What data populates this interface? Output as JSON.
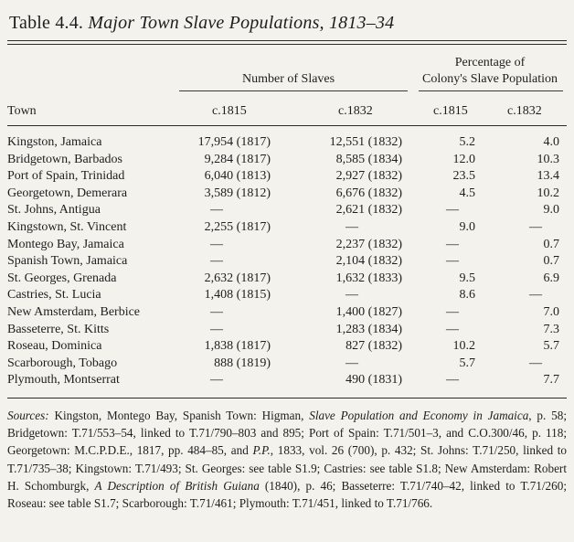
{
  "title": {
    "prefix": "Table 4.4.",
    "italic": "Major Town Slave Populations, 1813–34"
  },
  "header": {
    "number_of_slaves": "Number of Slaves",
    "percentage_line1": "Percentage of",
    "percentage_line2": "Colony's Slave Population",
    "town": "Town",
    "c1815": "c.1815",
    "c1832": "c.1832",
    "pc1815": "c.1815",
    "pc1832": "c.1832"
  },
  "rows": [
    {
      "town": "Kingston, Jamaica",
      "n1815": "17,954 (1817)",
      "n1832": "12,551 (1832)",
      "p1815": "5.2",
      "p1832": "4.0"
    },
    {
      "town": "Bridgetown, Barbados",
      "n1815": "9,284 (1817)",
      "n1832": "8,585 (1834)",
      "p1815": "12.0",
      "p1832": "10.3"
    },
    {
      "town": "Port of Spain, Trinidad",
      "n1815": "6,040 (1813)",
      "n1832": "2,927 (1832)",
      "p1815": "23.5",
      "p1832": "13.4"
    },
    {
      "town": "Georgetown, Demerara",
      "n1815": "3,589 (1812)",
      "n1832": "6,676 (1832)",
      "p1815": "4.5",
      "p1832": "10.2"
    },
    {
      "town": "St. Johns, Antigua",
      "n1815": "—",
      "n1832": "2,621 (1832)",
      "p1815": "—",
      "p1832": "9.0"
    },
    {
      "town": "Kingstown, St. Vincent",
      "n1815": "2,255 (1817)",
      "n1832": "—",
      "p1815": "9.0",
      "p1832": "—"
    },
    {
      "town": "Montego Bay, Jamaica",
      "n1815": "—",
      "n1832": "2,237 (1832)",
      "p1815": "—",
      "p1832": "0.7"
    },
    {
      "town": "Spanish Town, Jamaica",
      "n1815": "—",
      "n1832": "2,104 (1832)",
      "p1815": "—",
      "p1832": "0.7"
    },
    {
      "town": "St. Georges, Grenada",
      "n1815": "2,632 (1817)",
      "n1832": "1,632 (1833)",
      "p1815": "9.5",
      "p1832": "6.9"
    },
    {
      "town": "Castries, St. Lucia",
      "n1815": "1,408 (1815)",
      "n1832": "—",
      "p1815": "8.6",
      "p1832": "—"
    },
    {
      "town": "New Amsterdam, Berbice",
      "n1815": "—",
      "n1832": "1,400 (1827)",
      "p1815": "—",
      "p1832": "7.0"
    },
    {
      "town": "Basseterre, St. Kitts",
      "n1815": "—",
      "n1832": "1,283 (1834)",
      "p1815": "—",
      "p1832": "7.3"
    },
    {
      "town": "Roseau, Dominica",
      "n1815": "1,838 (1817)",
      "n1832": "827 (1832)",
      "p1815": "10.2",
      "p1832": "5.7"
    },
    {
      "town": "Scarborough, Tobago",
      "n1815": "888 (1819)",
      "n1832": "—",
      "p1815": "5.7",
      "p1832": "—"
    },
    {
      "town": "Plymouth, Montserrat",
      "n1815": "—",
      "n1832": "490 (1831)",
      "p1815": "—",
      "p1832": "7.7"
    }
  ],
  "sources": {
    "label": "Sources:",
    "t1": " Kingston, Montego Bay, Spanish Town: Higman, ",
    "i1": "Slave Population and Economy in Jamaica",
    "t2": ", p. 58; Bridgetown: T.71/553–54, linked to T.71/790–803 and 895; Port of Spain: T.71/501–3, and C.O.300/46, p. 118; Georgetown: M.C.P.D.E., 1817, pp. 484–85, and ",
    "i2": "P.P.",
    "t3": ", 1833, vol. 26 (700), p. 432; St. Johns: T.71/250, linked to T.71/735–38; Kingstown: T.71/493; St. Georges: see table S1.9; Castries: see table S1.8; New Amsterdam: Robert H. Schomburgk, ",
    "i3": "A Description of British Guiana",
    "t4": " (1840), p. 46; Basseterre: T.71/740–42, linked to T.71/260; Roseau: see table S1.7; Scarborough: T.71/461; Plymouth: T.71/451, linked to T.71/766."
  }
}
